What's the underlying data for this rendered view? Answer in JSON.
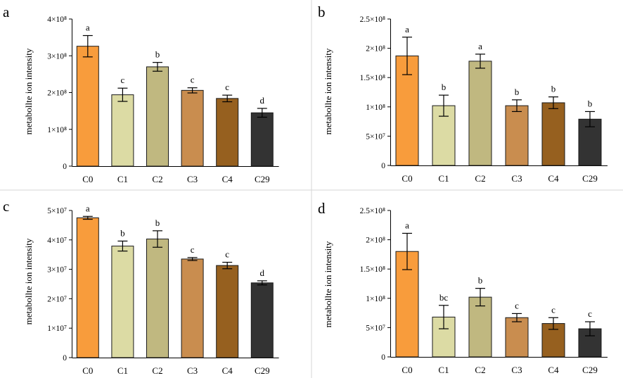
{
  "colors": [
    "#f89c3c",
    "#dcdba4",
    "#c0b880",
    "#c98d4f",
    "#96601f",
    "#333333"
  ],
  "chart_data": [
    {
      "type": "bar",
      "panel": "a",
      "categories": [
        "C0",
        "C1",
        "C2",
        "C3",
        "C4",
        "C29"
      ],
      "values": [
        326000000,
        194000000,
        270000000,
        206000000,
        184000000,
        145000000
      ],
      "errors": [
        29000000,
        18000000,
        12000000,
        7000000,
        9000000,
        12000000
      ],
      "letters": [
        "a",
        "c",
        "b",
        "c",
        "c",
        "d"
      ],
      "ylabel": "metabollte ion intensity",
      "ylim": [
        0,
        400000000
      ],
      "yticks": [
        0,
        100000000,
        200000000,
        300000000,
        400000000
      ],
      "ytick_labels": [
        "0",
        "1×10⁸",
        "2×10⁸",
        "3×10⁸",
        "4×10⁸"
      ]
    },
    {
      "type": "bar",
      "panel": "b",
      "categories": [
        "C0",
        "C1",
        "C2",
        "C3",
        "C4",
        "C29"
      ],
      "values": [
        187000000,
        102000000,
        178000000,
        102000000,
        107000000,
        79000000
      ],
      "errors": [
        32000000,
        18000000,
        12000000,
        10000000,
        10000000,
        13000000
      ],
      "letters": [
        "a",
        "b",
        "a",
        "b",
        "b",
        "b"
      ],
      "ylabel": "metabollte ion intensity",
      "ylim": [
        0,
        250000000
      ],
      "yticks": [
        0,
        50000000,
        100000000,
        150000000,
        200000000,
        250000000
      ],
      "ytick_labels": [
        "0",
        "5×10⁷",
        "1×10⁸",
        "1.5×10⁸",
        "2×10⁸",
        "2.5×10⁸"
      ]
    },
    {
      "type": "bar",
      "panel": "c",
      "categories": [
        "C0",
        "C1",
        "C2",
        "C3",
        "C4",
        "C29"
      ],
      "values": [
        47500000,
        37900000,
        40300000,
        33500000,
        31300000,
        25400000
      ],
      "errors": [
        500000,
        1700000,
        2800000,
        500000,
        1100000,
        700000
      ],
      "letters": [
        "a",
        "b",
        "b",
        "c",
        "c",
        "d"
      ],
      "ylabel": "metabollte ion intensity",
      "ylim": [
        0,
        50000000
      ],
      "yticks": [
        0,
        10000000,
        20000000,
        30000000,
        40000000,
        50000000
      ],
      "ytick_labels": [
        "0",
        "1×10⁷",
        "2×10⁷",
        "3×10⁷",
        "4×10⁷",
        "5×10⁷"
      ]
    },
    {
      "type": "bar",
      "panel": "d",
      "categories": [
        "C0",
        "C1",
        "C2",
        "C3",
        "C4",
        "C29"
      ],
      "values": [
        180000000,
        68000000,
        102000000,
        67000000,
        57000000,
        48000000
      ],
      "errors": [
        31000000,
        20000000,
        15000000,
        7000000,
        10000000,
        12000000
      ],
      "letters": [
        "a",
        "bc",
        "b",
        "c",
        "c",
        "c"
      ],
      "ylabel": "metabollte ion intensity",
      "ylim": [
        0,
        250000000
      ],
      "yticks": [
        0,
        50000000,
        100000000,
        150000000,
        200000000,
        250000000
      ],
      "ytick_labels": [
        "0",
        "5×10⁷",
        "1×10⁸",
        "1.5×10⁸",
        "2×10⁸",
        "2.5×10⁸"
      ]
    }
  ]
}
